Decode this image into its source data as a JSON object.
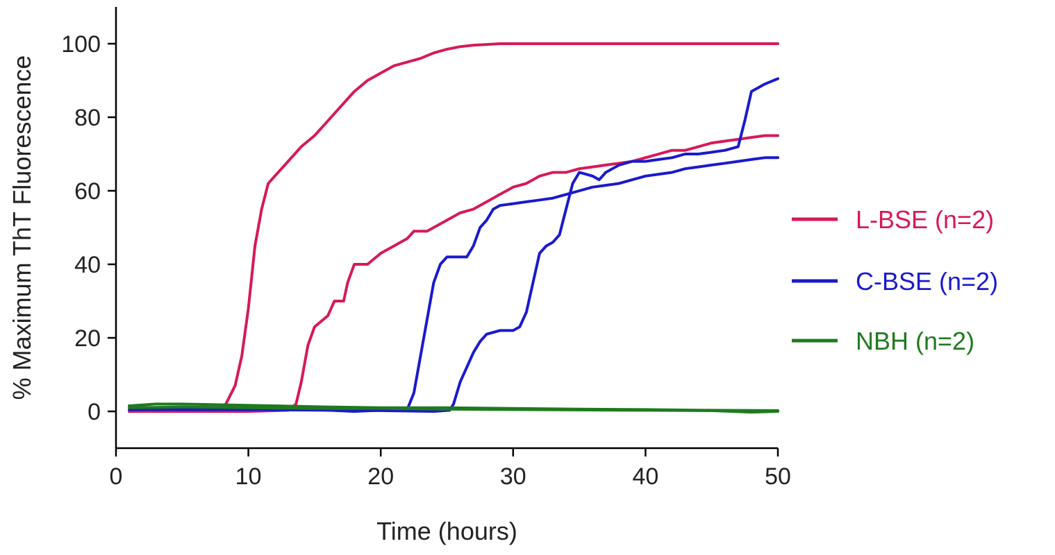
{
  "chart_data": {
    "type": "line",
    "title": "",
    "xlabel": "Time (hours)",
    "ylabel": "% Maximum ThT Fluorescence",
    "xlim": [
      0,
      50
    ],
    "ylim": [
      -10,
      110
    ],
    "xticks": [
      0,
      10,
      20,
      30,
      40,
      50
    ],
    "yticks": [
      0,
      20,
      40,
      60,
      80,
      100
    ],
    "grid": false,
    "legend_position": "right",
    "legend": [
      {
        "label": "L-BSE (n=2)",
        "color": "#d6195a"
      },
      {
        "label": "C-BSE (n=2)",
        "color": "#1a1acc"
      },
      {
        "label": "NBH (n=2)",
        "color": "#1f7a1f"
      }
    ],
    "series": [
      {
        "group": "L-BSE (n=2)",
        "color": "#d6195a",
        "points": [
          [
            1,
            0
          ],
          [
            5,
            0
          ],
          [
            7.5,
            0.3
          ],
          [
            8.3,
            2
          ],
          [
            9,
            7
          ],
          [
            9.5,
            15
          ],
          [
            10,
            28
          ],
          [
            10.5,
            45
          ],
          [
            11,
            55
          ],
          [
            11.5,
            62
          ],
          [
            12,
            64
          ],
          [
            13,
            68
          ],
          [
            14,
            72
          ],
          [
            15,
            75
          ],
          [
            16,
            79
          ],
          [
            17,
            83
          ],
          [
            18,
            87
          ],
          [
            19,
            90
          ],
          [
            20,
            92
          ],
          [
            21,
            94
          ],
          [
            22,
            95
          ],
          [
            23,
            96
          ],
          [
            24,
            97.5
          ],
          [
            25,
            98.5
          ],
          [
            26,
            99.2
          ],
          [
            27,
            99.6
          ],
          [
            28,
            99.8
          ],
          [
            29,
            100
          ],
          [
            50,
            100
          ]
        ]
      },
      {
        "group": "L-BSE (n=2)",
        "color": "#d6195a",
        "points": [
          [
            1,
            0
          ],
          [
            10,
            0
          ],
          [
            13,
            0.3
          ],
          [
            13.6,
            2
          ],
          [
            14,
            8
          ],
          [
            14.5,
            18
          ],
          [
            15,
            23
          ],
          [
            16,
            26
          ],
          [
            16.5,
            30
          ],
          [
            17.2,
            30
          ],
          [
            17.5,
            35
          ],
          [
            18,
            40
          ],
          [
            19,
            40
          ],
          [
            20,
            43
          ],
          [
            21,
            45
          ],
          [
            22,
            47
          ],
          [
            22.5,
            49
          ],
          [
            23.5,
            49
          ],
          [
            24,
            50
          ],
          [
            25,
            52
          ],
          [
            26,
            54
          ],
          [
            27,
            55
          ],
          [
            28,
            57
          ],
          [
            29,
            59
          ],
          [
            30,
            61
          ],
          [
            31,
            62
          ],
          [
            32,
            64
          ],
          [
            33,
            65
          ],
          [
            34,
            65
          ],
          [
            35,
            66
          ],
          [
            36,
            66.5
          ],
          [
            37,
            67
          ],
          [
            38,
            67.5
          ],
          [
            39,
            68
          ],
          [
            40,
            69
          ],
          [
            41,
            70
          ],
          [
            42,
            71
          ],
          [
            43,
            71
          ],
          [
            44,
            72
          ],
          [
            45,
            73
          ],
          [
            46,
            73.5
          ],
          [
            47,
            74
          ],
          [
            48,
            74.5
          ],
          [
            49,
            75
          ],
          [
            50,
            75
          ]
        ]
      },
      {
        "group": "C-BSE (n=2)",
        "color": "#1a1acc",
        "points": [
          [
            1,
            1.5
          ],
          [
            2,
            1
          ],
          [
            5,
            0.5
          ],
          [
            15,
            0.5
          ],
          [
            18,
            0
          ],
          [
            20,
            0.3
          ],
          [
            22,
            0.5
          ],
          [
            22.5,
            5
          ],
          [
            23,
            15
          ],
          [
            23.5,
            25
          ],
          [
            24,
            35
          ],
          [
            24.5,
            40
          ],
          [
            25,
            42
          ],
          [
            26.5,
            42
          ],
          [
            27,
            45
          ],
          [
            27.5,
            50
          ],
          [
            28,
            52
          ],
          [
            28.5,
            55
          ],
          [
            29,
            56
          ],
          [
            30,
            56.5
          ],
          [
            31,
            57
          ],
          [
            32,
            57.5
          ],
          [
            33,
            58
          ],
          [
            34,
            59
          ],
          [
            35,
            60
          ],
          [
            36,
            61
          ],
          [
            37,
            61.5
          ],
          [
            38,
            62
          ],
          [
            39,
            63
          ],
          [
            40,
            64
          ],
          [
            41,
            64.5
          ],
          [
            42,
            65
          ],
          [
            43,
            66
          ],
          [
            44,
            66.5
          ],
          [
            45,
            67
          ],
          [
            46,
            67.5
          ],
          [
            47,
            68
          ],
          [
            48,
            68.5
          ],
          [
            49,
            69
          ],
          [
            50,
            69
          ]
        ]
      },
      {
        "group": "C-BSE (n=2)",
        "color": "#1a1acc",
        "points": [
          [
            1,
            0.5
          ],
          [
            10,
            0.5
          ],
          [
            20,
            0.2
          ],
          [
            24,
            0
          ],
          [
            25.2,
            0.3
          ],
          [
            25.5,
            2
          ],
          [
            26,
            8
          ],
          [
            26.5,
            12
          ],
          [
            27,
            16
          ],
          [
            27.5,
            19
          ],
          [
            28,
            21
          ],
          [
            29,
            22
          ],
          [
            30,
            22
          ],
          [
            30.5,
            23
          ],
          [
            31,
            27
          ],
          [
            31.5,
            35
          ],
          [
            32,
            43
          ],
          [
            32.5,
            45
          ],
          [
            33,
            46
          ],
          [
            33.5,
            48
          ],
          [
            34,
            55
          ],
          [
            34.5,
            62
          ],
          [
            35,
            65
          ],
          [
            35.5,
            64.5
          ],
          [
            36,
            64
          ],
          [
            36.5,
            63
          ],
          [
            37,
            65
          ],
          [
            38,
            67
          ],
          [
            39,
            68
          ],
          [
            40,
            68
          ],
          [
            41,
            68.5
          ],
          [
            42,
            69
          ],
          [
            43,
            70
          ],
          [
            44,
            70
          ],
          [
            45,
            70.5
          ],
          [
            46,
            71
          ],
          [
            47,
            72
          ],
          [
            47.5,
            79
          ],
          [
            48,
            87
          ],
          [
            48.5,
            88
          ],
          [
            49,
            89
          ],
          [
            50,
            90.5
          ]
        ]
      },
      {
        "group": "NBH (n=2)",
        "color": "#1f7a1f",
        "points": [
          [
            1,
            1.5
          ],
          [
            3,
            2
          ],
          [
            5,
            2
          ],
          [
            8,
            1.8
          ],
          [
            12,
            1.5
          ],
          [
            16,
            1.2
          ],
          [
            20,
            1
          ],
          [
            25,
            1
          ],
          [
            30,
            0.8
          ],
          [
            35,
            0.6
          ],
          [
            40,
            0.5
          ],
          [
            45,
            0.3
          ],
          [
            50,
            0.2
          ]
        ]
      },
      {
        "group": "NBH (n=2)",
        "color": "#1f7a1f",
        "points": [
          [
            1,
            1
          ],
          [
            5,
            1.2
          ],
          [
            10,
            1
          ],
          [
            15,
            0.8
          ],
          [
            20,
            0.8
          ],
          [
            25,
            0.6
          ],
          [
            30,
            0.5
          ],
          [
            35,
            0.4
          ],
          [
            40,
            0.3
          ],
          [
            45,
            0.2
          ],
          [
            48,
            -0.2
          ],
          [
            50,
            0
          ]
        ]
      }
    ]
  }
}
